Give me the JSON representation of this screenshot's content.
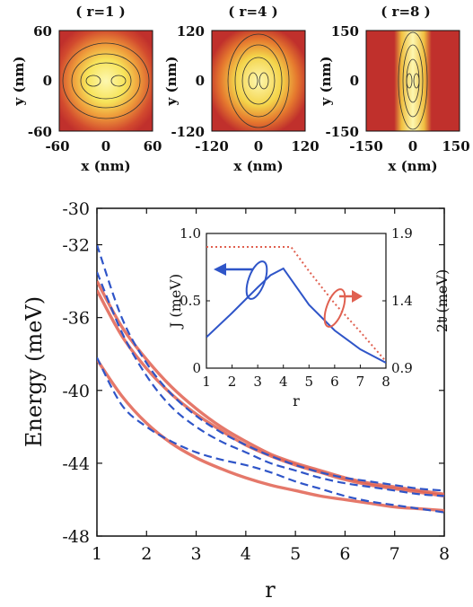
{
  "colors": {
    "red": "#e06050",
    "blue": "#2f55c8",
    "panel_dark": "#c0302c",
    "panel_mid": "#e77a2a",
    "panel_light": "#f7e45a",
    "panel_center": "#fdf7a2"
  },
  "panels": [
    {
      "title": "( r=1 )",
      "xlabel": "x (nm)",
      "ylabel": "y (nm)",
      "xticks": [
        "-60",
        "0",
        "60"
      ],
      "yticks": [
        "60",
        "0",
        "-60"
      ]
    },
    {
      "title": "( r=4 )",
      "xlabel": "x (nm)",
      "ylabel": "y (nm)",
      "xticks": [
        "-120",
        "0",
        "120"
      ],
      "yticks": [
        "120",
        "0",
        "-120"
      ]
    },
    {
      "title": "( r=8 )",
      "xlabel": "x (nm)",
      "ylabel": "y (nm)",
      "xticks": [
        "-150",
        "0",
        "150"
      ],
      "yticks": [
        "150",
        "0",
        "-150"
      ]
    }
  ],
  "chart_data": [
    {
      "type": "line",
      "xlabel": "r",
      "ylabel": "Energy (meV)",
      "xlim": [
        1,
        8
      ],
      "ylim": [
        -48,
        -30
      ],
      "xticks": [
        "1",
        "2",
        "3",
        "4",
        "5",
        "6",
        "7",
        "8"
      ],
      "yticks": [
        "-30",
        "-32",
        "-36",
        "-40",
        "-44",
        "-48"
      ],
      "x": [
        1,
        1.5,
        2,
        2.5,
        3,
        3.5,
        4,
        4.5,
        5,
        5.5,
        6,
        6.5,
        7,
        7.5,
        8
      ],
      "series": [
        {
          "style": "solid",
          "color": "red",
          "values": [
            -34.0,
            -36.5,
            -38.3,
            -39.8,
            -41.0,
            -42.0,
            -42.8,
            -43.5,
            -44.0,
            -44.4,
            -44.8,
            -45.1,
            -45.3,
            -45.5,
            -45.7
          ]
        },
        {
          "style": "solid",
          "color": "red",
          "values": [
            -34.5,
            -37.0,
            -38.8,
            -40.2,
            -41.3,
            -42.2,
            -43.0,
            -43.6,
            -44.1,
            -44.5,
            -44.9,
            -45.2,
            -45.4,
            -45.6,
            -45.8
          ]
        },
        {
          "style": "solid",
          "color": "red",
          "values": [
            -38.3,
            -40.3,
            -41.8,
            -42.9,
            -43.7,
            -44.3,
            -44.8,
            -45.2,
            -45.5,
            -45.8,
            -46.0,
            -46.2,
            -46.4,
            -46.5,
            -46.6
          ]
        },
        {
          "style": "dashed",
          "color": "blue",
          "values": [
            -32.0,
            -36.0,
            -38.5,
            -40.2,
            -41.4,
            -42.3,
            -43.0,
            -43.6,
            -44.1,
            -44.5,
            -44.8,
            -45.0,
            -45.2,
            -45.4,
            -45.5
          ]
        },
        {
          "style": "dashed",
          "color": "blue",
          "values": [
            -33.5,
            -36.8,
            -39.2,
            -40.9,
            -42.0,
            -42.8,
            -43.4,
            -44.0,
            -44.4,
            -44.8,
            -45.1,
            -45.3,
            -45.5,
            -45.7,
            -45.8
          ]
        },
        {
          "style": "dashed",
          "color": "blue",
          "values": [
            -38.2,
            -40.8,
            -42.0,
            -42.8,
            -43.4,
            -43.8,
            -44.1,
            -44.5,
            -45.0,
            -45.4,
            -45.8,
            -46.1,
            -46.3,
            -46.5,
            -46.7
          ]
        }
      ]
    },
    {
      "type": "line",
      "xlabel": "r",
      "ylabel_left": "J (meV)",
      "ylabel_right": "2t (meV)",
      "xlim": [
        1,
        8
      ],
      "ylim_left": [
        0,
        1
      ],
      "ylim_right": [
        0.9,
        1.9
      ],
      "xticks": [
        "1",
        "2",
        "3",
        "4",
        "5",
        "6",
        "7",
        "8"
      ],
      "yticks_left": [
        "0",
        "0.5",
        "1.0"
      ],
      "yticks_right": [
        "0.9",
        "1.4",
        "1.9"
      ],
      "series": [
        {
          "axis": "left",
          "style": "solid",
          "color": "blue",
          "x": [
            1,
            2,
            3,
            3.5,
            4,
            5,
            6,
            7,
            8
          ],
          "values": [
            0.23,
            0.41,
            0.6,
            0.69,
            0.74,
            0.47,
            0.28,
            0.14,
            0.04
          ]
        },
        {
          "axis": "right",
          "style": "dotted",
          "color": "red",
          "x": [
            1,
            2,
            3,
            4,
            4.3,
            5,
            6,
            7,
            8
          ],
          "values": [
            1.8,
            1.8,
            1.8,
            1.8,
            1.8,
            1.62,
            1.38,
            1.17,
            0.95
          ]
        }
      ]
    }
  ]
}
